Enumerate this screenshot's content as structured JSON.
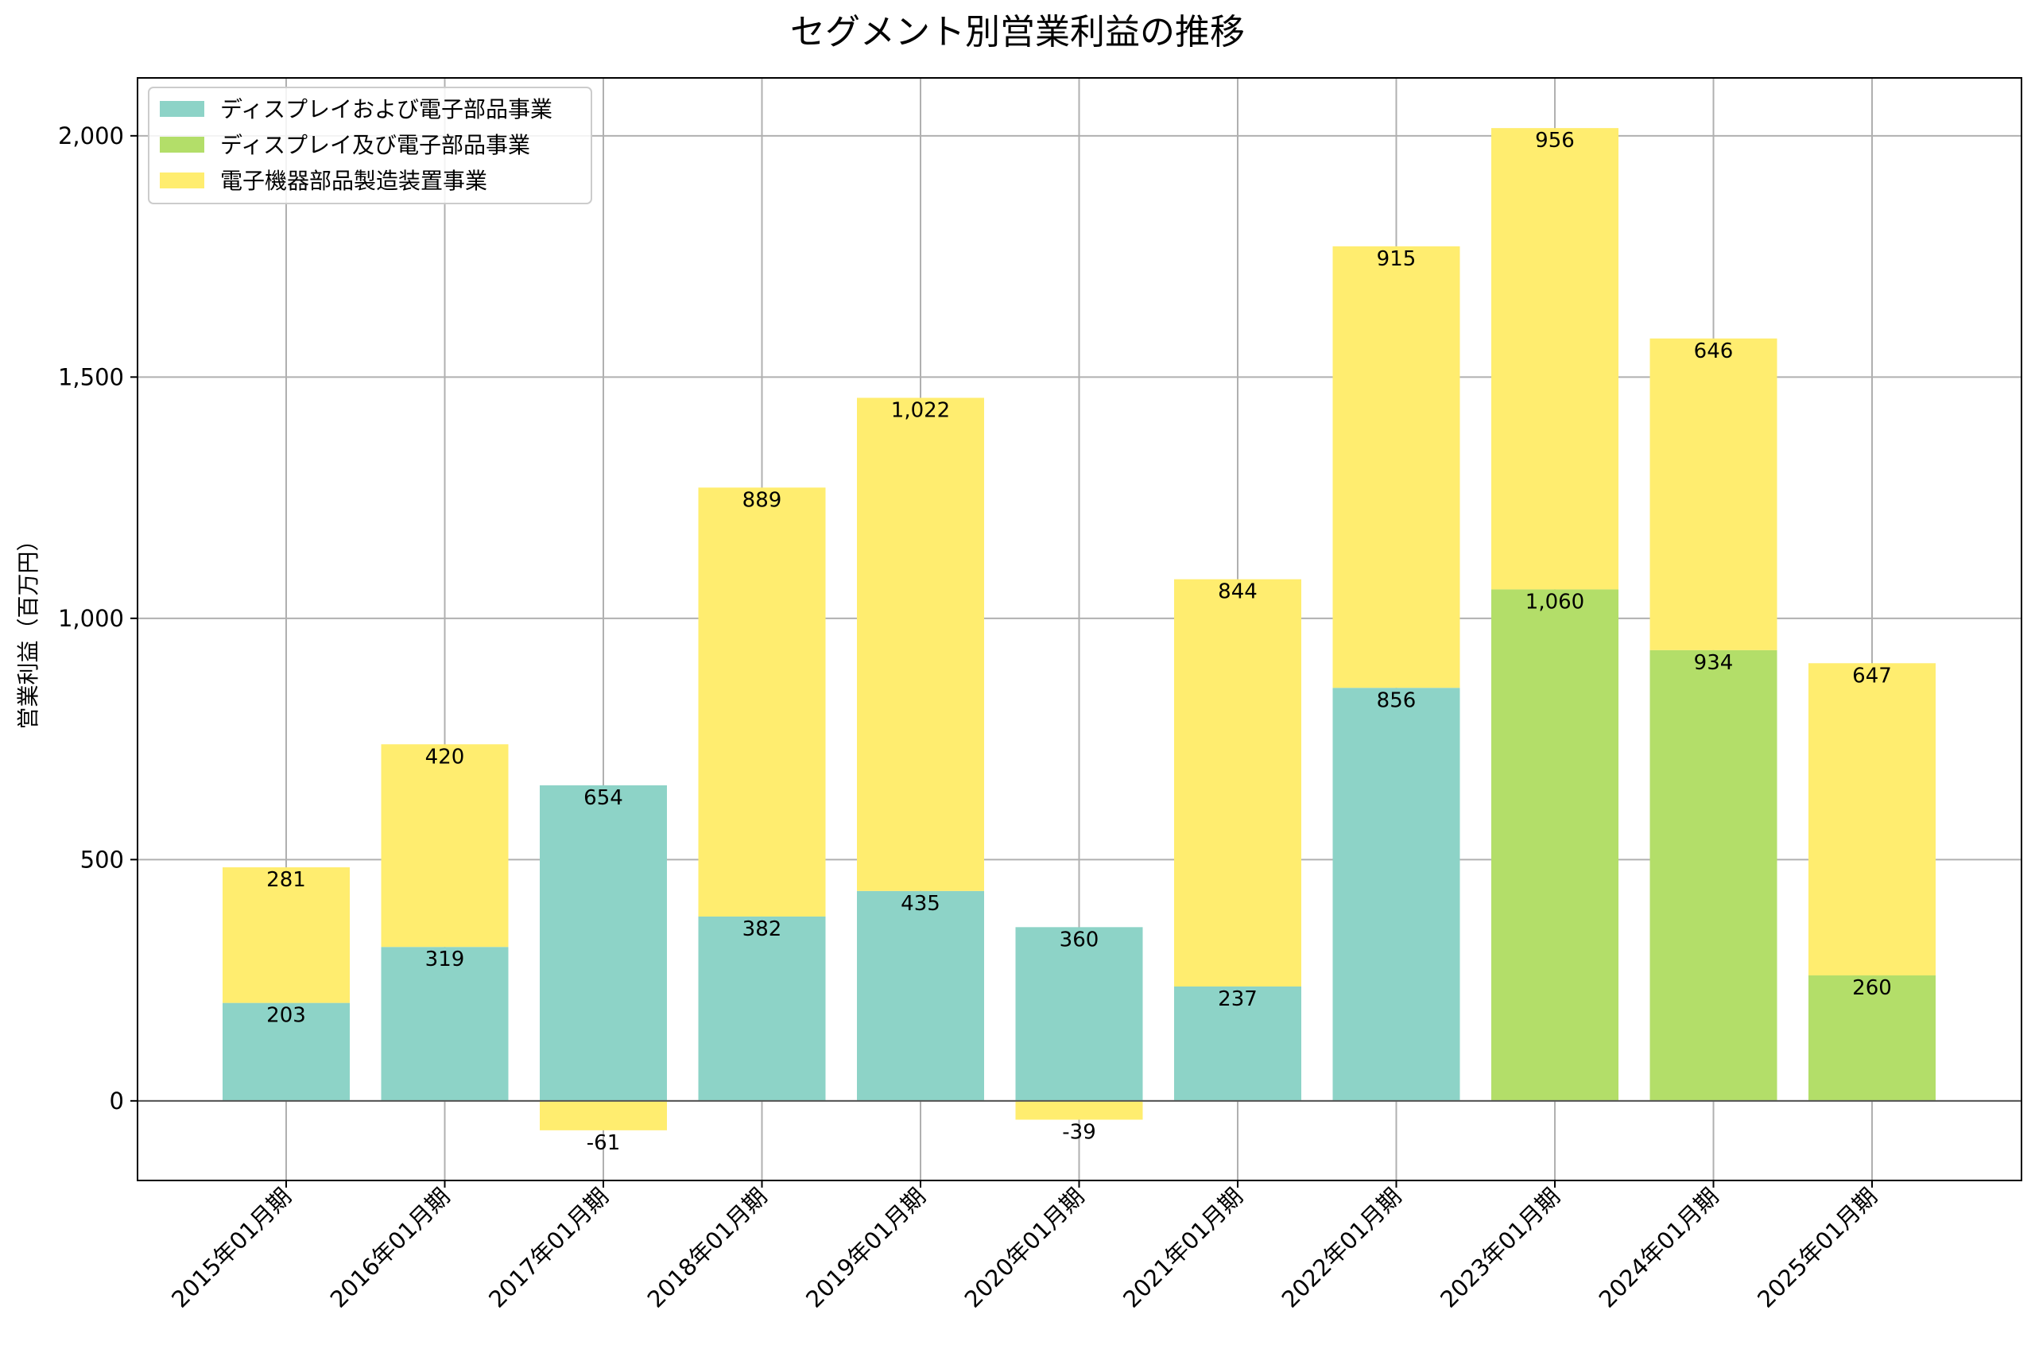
{
  "chart_data": {
    "type": "bar",
    "stacked": true,
    "title": "セグメント別営業利益の推移",
    "xlabel": "",
    "ylabel": "営業利益（百万円）",
    "ylim": [
      -165,
      2120
    ],
    "yticks": [
      0,
      500,
      1000,
      1500,
      2000
    ],
    "ytick_labels": [
      "0",
      "500",
      "1,000",
      "1,500",
      "2,000"
    ],
    "grid": true,
    "legend_position": "top-left",
    "categories": [
      "2015年01月期",
      "2016年01月期",
      "2017年01月期",
      "2018年01月期",
      "2019年01月期",
      "2020年01月期",
      "2021年01月期",
      "2022年01月期",
      "2023年01月期",
      "2024年01月期",
      "2025年01月期"
    ],
    "series": [
      {
        "name": "ディスプレイおよび電子部品事業",
        "color": "#8dd3c7",
        "values": [
          203,
          319,
          654,
          382,
          435,
          360,
          237,
          856,
          null,
          null,
          null
        ],
        "labels": [
          "203",
          "319",
          "654",
          "382",
          "435",
          "360",
          "237",
          "856",
          "",
          "",
          ""
        ]
      },
      {
        "name": "ディスプレイ及び電子部品事業",
        "color": "#b3de69",
        "values": [
          null,
          null,
          null,
          null,
          null,
          null,
          null,
          null,
          1060,
          934,
          260
        ],
        "labels": [
          "",
          "",
          "",
          "",
          "",
          "",
          "",
          "",
          "1,060",
          "934",
          "260"
        ]
      },
      {
        "name": "電子機器部品製造装置事業",
        "color": "#ffed6f",
        "values": [
          281,
          420,
          -61,
          889,
          1022,
          -39,
          844,
          915,
          956,
          646,
          647
        ],
        "labels": [
          "281",
          "420",
          "-61",
          "889",
          "1,022",
          "-39",
          "844",
          "915",
          "956",
          "646",
          "647"
        ]
      }
    ]
  }
}
